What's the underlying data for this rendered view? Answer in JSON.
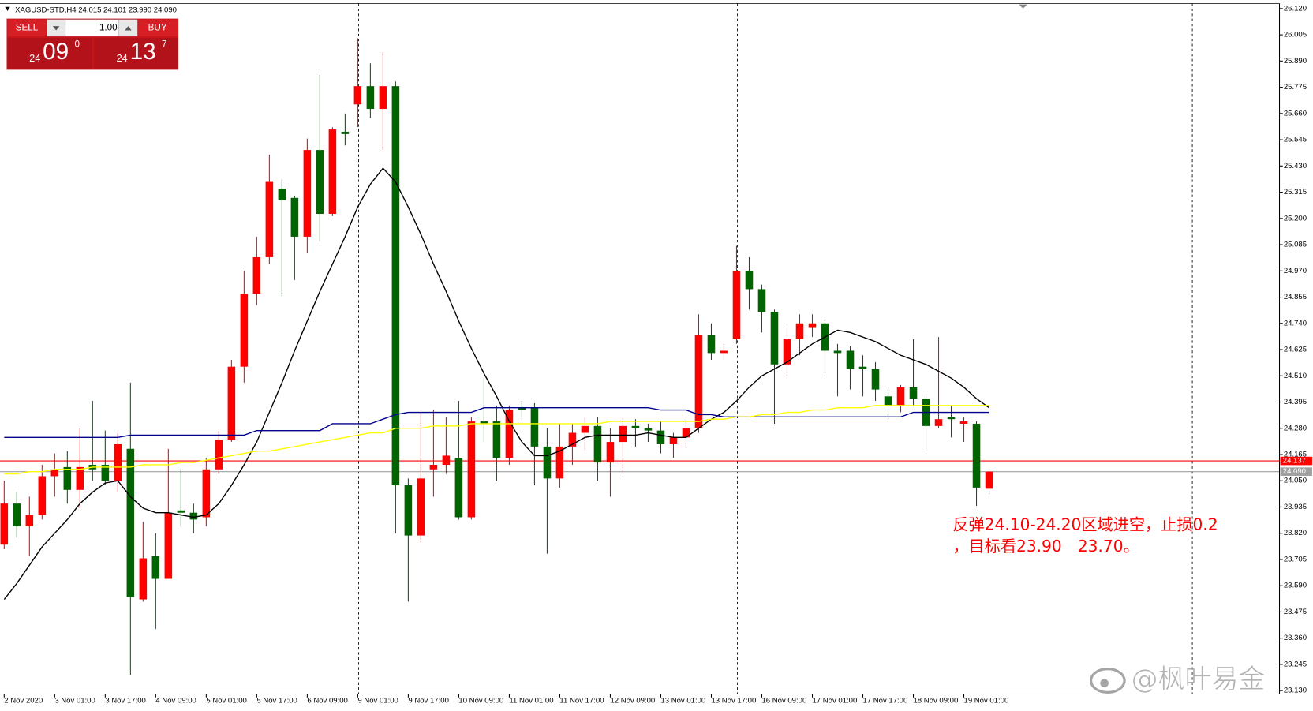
{
  "chart_data": {
    "type": "candlestick",
    "title": "XAGUSD-STD,H4  24.015 24.101 23.990 24.090",
    "categories": [
      "2 Nov 2020",
      null,
      null,
      null,
      "3 Nov 01:00",
      null,
      null,
      null,
      "3 Nov 17:00",
      null,
      null,
      null,
      "4 Nov 09:00",
      null,
      null,
      null,
      "5 Nov 01:00",
      null,
      null,
      null,
      "5 Nov 17:00",
      null,
      null,
      null,
      "6 Nov 09:00",
      null,
      null,
      null,
      "9 Nov 01:00",
      null,
      null,
      null,
      "9 Nov 17:00",
      null,
      null,
      null,
      "10 Nov 09:00",
      null,
      null,
      null,
      "11 Nov 01:00",
      null,
      null,
      null,
      "11 Nov 17:00",
      null,
      null,
      null,
      "12 Nov 09:00",
      null,
      null,
      null,
      "13 Nov 01:00",
      null,
      null,
      null,
      "13 Nov 17:00",
      null,
      null,
      null,
      "16 Nov 09:00",
      null,
      null,
      null,
      "17 Nov 01:00",
      null,
      null,
      null,
      "17 Nov 17:00",
      null,
      null,
      null,
      "18 Nov 09:00",
      null,
      null,
      null,
      "19 Nov 01:00",
      null,
      null
    ],
    "open": [
      23.77,
      23.95,
      23.85,
      23.9,
      24.07,
      24.11,
      24.01,
      24.12,
      24.12,
      24.05,
      24.19,
      23.53,
      23.72,
      23.62,
      23.92,
      23.91,
      23.89,
      24.1,
      24.23,
      24.55,
      24.87,
      25.03,
      25.33,
      25.29,
      25.12,
      25.5,
      25.22,
      25.58,
      25.7,
      25.78,
      25.68,
      25.78,
      24.03,
      23.81,
      24.1,
      24.12,
      24.15,
      23.89,
      24.31,
      24.31,
      24.15,
      24.37,
      24.37,
      24.2,
      24.06,
      24.2,
      24.26,
      24.29,
      24.13,
      24.22,
      24.29,
      24.28,
      24.27,
      24.21,
      24.24,
      24.28,
      24.69,
      24.61,
      24.67,
      24.97,
      24.89,
      24.79,
      24.56,
      24.67,
      24.72,
      24.74,
      24.62,
      24.62,
      24.55,
      24.54,
      24.42,
      24.38,
      24.46,
      24.41,
      24.29,
      24.33,
      24.3,
      24.3,
      24.015
    ],
    "high": [
      24.05,
      24.0,
      23.98,
      24.12,
      24.17,
      24.18,
      24.28,
      24.4,
      24.27,
      24.26,
      24.48,
      23.87,
      23.82,
      24.19,
      24.1,
      23.95,
      24.15,
      24.27,
      24.58,
      24.97,
      25.12,
      25.48,
      25.37,
      25.3,
      25.55,
      25.83,
      25.6,
      25.66,
      25.99,
      25.88,
      25.93,
      25.8,
      24.06,
      24.35,
      24.36,
      24.33,
      24.4,
      24.33,
      24.5,
      24.38,
      24.38,
      24.4,
      24.39,
      24.28,
      24.3,
      24.3,
      24.33,
      24.33,
      24.28,
      24.33,
      24.32,
      24.3,
      24.31,
      24.26,
      24.32,
      24.78,
      24.74,
      24.66,
      25.08,
      25.03,
      24.91,
      24.8,
      24.72,
      24.78,
      24.78,
      24.76,
      24.65,
      24.64,
      24.6,
      24.57,
      24.46,
      24.47,
      24.67,
      24.42,
      24.68,
      24.38,
      24.33,
      24.31,
      24.101
    ],
    "low": [
      23.75,
      23.8,
      23.72,
      23.88,
      23.98,
      23.95,
      23.93,
      24.05,
      24.03,
      24.0,
      23.2,
      23.52,
      23.4,
      23.62,
      23.85,
      23.82,
      23.85,
      24.08,
      24.22,
      24.48,
      24.82,
      25.0,
      24.86,
      24.93,
      25.05,
      25.1,
      25.21,
      25.52,
      25.6,
      25.64,
      25.5,
      23.82,
      23.52,
      23.78,
      23.98,
      24.08,
      23.88,
      23.88,
      24.22,
      24.05,
      24.12,
      24.32,
      24.03,
      23.73,
      24.02,
      24.12,
      24.18,
      24.05,
      23.98,
      24.08,
      24.2,
      24.22,
      24.17,
      24.15,
      24.2,
      24.26,
      24.58,
      24.58,
      24.65,
      24.8,
      24.7,
      24.3,
      24.5,
      24.6,
      24.68,
      24.52,
      24.42,
      24.45,
      24.42,
      24.4,
      24.32,
      24.35,
      24.38,
      24.18,
      24.28,
      24.24,
      24.22,
      23.94,
      23.99
    ],
    "close": [
      23.95,
      23.85,
      23.9,
      24.07,
      24.1,
      24.01,
      24.11,
      24.1,
      24.05,
      24.21,
      23.54,
      23.71,
      23.62,
      23.91,
      23.91,
      23.88,
      24.1,
      24.23,
      24.55,
      24.87,
      25.03,
      25.36,
      25.28,
      25.12,
      25.5,
      25.22,
      25.59,
      25.57,
      25.78,
      25.68,
      25.78,
      24.03,
      23.81,
      24.06,
      24.12,
      24.16,
      23.89,
      24.31,
      24.3,
      24.15,
      24.36,
      24.36,
      24.2,
      24.06,
      24.2,
      24.26,
      24.29,
      24.13,
      24.22,
      24.29,
      24.28,
      24.27,
      24.21,
      24.24,
      24.28,
      24.69,
      24.61,
      24.62,
      24.97,
      24.89,
      24.79,
      24.56,
      24.67,
      24.74,
      24.74,
      24.62,
      24.61,
      24.54,
      24.54,
      24.45,
      24.38,
      24.46,
      24.41,
      24.29,
      24.32,
      24.32,
      24.31,
      24.02,
      24.09
    ],
    "up_color": "#ff0000",
    "down_color": "#006400",
    "moving_averages": [
      {
        "color": "#000000",
        "values": [
          23.53,
          23.6,
          23.68,
          23.76,
          23.82,
          23.88,
          23.95,
          24.0,
          24.04,
          24.05,
          23.98,
          23.93,
          23.91,
          23.91,
          23.9,
          23.89,
          23.9,
          23.95,
          24.03,
          24.12,
          24.22,
          24.35,
          24.48,
          24.62,
          24.75,
          24.88,
          25.0,
          25.12,
          25.25,
          25.35,
          25.42,
          25.36,
          25.25,
          25.13,
          25.0,
          24.88,
          24.75,
          24.63,
          24.52,
          24.42,
          24.31,
          24.22,
          24.16,
          24.16,
          24.18,
          24.21,
          24.24,
          24.25,
          24.25,
          24.25,
          24.25,
          24.26,
          24.25,
          24.24,
          24.24,
          24.28,
          24.32,
          24.35,
          24.4,
          24.46,
          24.51,
          24.54,
          24.57,
          24.61,
          24.65,
          24.68,
          24.71,
          24.7,
          24.68,
          24.66,
          24.63,
          24.6,
          24.58,
          24.56,
          24.53,
          24.5,
          24.46,
          24.41,
          24.37
        ]
      },
      {
        "color": "#00008b",
        "values": [
          24.24,
          24.24,
          24.24,
          24.24,
          24.24,
          24.24,
          24.24,
          24.24,
          24.24,
          24.24,
          24.25,
          24.25,
          24.25,
          24.25,
          24.25,
          24.25,
          24.25,
          24.25,
          24.25,
          24.25,
          24.27,
          24.27,
          24.27,
          24.27,
          24.27,
          24.27,
          24.3,
          24.3,
          24.3,
          24.3,
          24.32,
          24.34,
          24.35,
          24.35,
          24.35,
          24.35,
          24.35,
          24.35,
          24.37,
          24.37,
          24.37,
          24.37,
          24.37,
          24.37,
          24.37,
          24.37,
          24.37,
          24.37,
          24.37,
          24.37,
          24.37,
          24.37,
          24.36,
          24.36,
          24.36,
          24.34,
          24.34,
          24.33,
          24.33,
          24.33,
          24.33,
          24.33,
          24.33,
          24.33,
          24.33,
          24.33,
          24.33,
          24.33,
          24.33,
          24.33,
          24.33,
          24.33,
          24.35,
          24.35,
          24.35,
          24.35,
          24.35,
          24.35,
          24.35
        ]
      },
      {
        "color": "#ffff00",
        "values": [
          24.08,
          24.08,
          24.09,
          24.09,
          24.1,
          24.1,
          24.1,
          24.11,
          24.11,
          24.11,
          24.11,
          24.12,
          24.12,
          24.12,
          24.13,
          24.13,
          24.14,
          24.15,
          24.16,
          24.17,
          24.18,
          24.18,
          24.19,
          24.2,
          24.21,
          24.22,
          24.23,
          24.24,
          24.25,
          24.26,
          24.26,
          24.28,
          24.28,
          24.28,
          24.29,
          24.29,
          24.29,
          24.3,
          24.3,
          24.3,
          24.3,
          24.3,
          24.3,
          24.3,
          24.3,
          24.3,
          24.3,
          24.3,
          24.31,
          24.31,
          24.31,
          24.31,
          24.31,
          24.31,
          24.31,
          24.31,
          24.32,
          24.32,
          24.33,
          24.33,
          24.34,
          24.34,
          24.35,
          24.35,
          24.36,
          24.36,
          24.37,
          24.37,
          24.37,
          24.38,
          24.38,
          24.38,
          24.38,
          24.38,
          24.38,
          24.38,
          24.38,
          24.38,
          24.38
        ]
      }
    ],
    "ylim": [
      23.115,
      26.142
    ],
    "yticks": [
      {
        "value": 26.12,
        "label": "26.120"
      },
      26.005,
      {
        "value": 25.89,
        "label": "25.890"
      },
      25.775,
      {
        "value": 25.66,
        "label": "25.660"
      },
      25.545,
      {
        "value": 25.43,
        "label": "25.430"
      },
      25.315,
      {
        "value": 25.2,
        "label": "25.200"
      },
      25.085,
      {
        "value": 24.97,
        "label": "24.970"
      },
      24.855,
      {
        "value": 24.74,
        "label": "24.740"
      },
      24.625,
      {
        "value": 24.51,
        "label": "24.510"
      },
      24.395,
      {
        "value": 24.28,
        "label": "24.280"
      },
      24.165,
      {
        "value": 24.05,
        "label": "24.050"
      },
      23.935,
      {
        "value": 23.82,
        "label": "23.820"
      },
      23.705,
      {
        "value": 23.59,
        "label": "23.590"
      },
      23.475,
      {
        "value": 23.36,
        "label": "23.360"
      },
      23.245,
      {
        "value": 23.13,
        "label": "23.130"
      }
    ],
    "price_lines": [
      {
        "value": 24.137,
        "label": "24.137",
        "color": "#ff0000"
      },
      {
        "value": 24.09,
        "label": "24.090",
        "color": "#a0a0a0"
      }
    ],
    "annotations": [
      "反弹24.10-24.20区域进空，止损0.2",
      "，目标看23.90　23.70。"
    ],
    "watermark": "@枫叶易金",
    "trade_panel": {
      "sell": "SELL",
      "lot": "1.00",
      "buy": "BUY",
      "sell_price": [
        "24",
        "09",
        "0"
      ],
      "buy_price": [
        "24",
        "13",
        "7"
      ]
    }
  }
}
